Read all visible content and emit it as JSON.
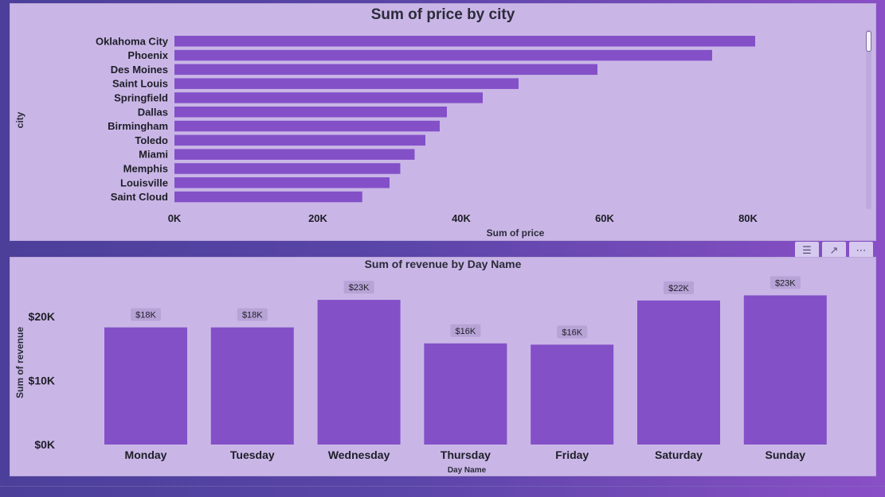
{
  "visual_actions": {
    "filter_icon": "filter-icon",
    "focus_icon": "focus-mode-icon",
    "more_icon": "more-options-icon"
  },
  "colors": {
    "bar": "#8350c8",
    "label_bg": "#b7a3d6",
    "text": "#1e1e28",
    "panel": "#c9b6e6"
  },
  "chart_data": [
    {
      "type": "bar",
      "orientation": "horizontal",
      "title": "Sum of price by city",
      "xlabel": "Sum of price",
      "ylabel": "city",
      "categories": [
        "Oklahoma City",
        "Phoenix",
        "Des Moines",
        "Saint Louis",
        "Springfield",
        "Dallas",
        "Birmingham",
        "Toledo",
        "Miami",
        "Memphis",
        "Louisville",
        "Saint Cloud"
      ],
      "values": [
        81000,
        75000,
        59000,
        48000,
        43000,
        38000,
        37000,
        35000,
        33500,
        31500,
        30000,
        26200
      ],
      "xlim": [
        0,
        90000
      ],
      "ticks": [
        "0K",
        "20K",
        "40K",
        "60K",
        "80K"
      ],
      "tick_values": [
        0,
        20000,
        40000,
        60000,
        80000
      ],
      "grid": false,
      "legend": "none"
    },
    {
      "type": "bar",
      "orientation": "vertical",
      "title": "Sum of revenue by Day Name",
      "xlabel": "Day Name",
      "ylabel": "Sum of revenue",
      "categories": [
        "Monday",
        "Tuesday",
        "Wednesday",
        "Thursday",
        "Friday",
        "Saturday",
        "Sunday"
      ],
      "values": [
        18300,
        18300,
        22600,
        15800,
        15600,
        22500,
        23300
      ],
      "data_labels": [
        "$18K",
        "$18K",
        "$23K",
        "$16K",
        "$16K",
        "$22K",
        "$23K"
      ],
      "ylim": [
        0,
        25000
      ],
      "ticks": [
        "$0K",
        "$10K",
        "$20K"
      ],
      "tick_values": [
        0,
        10000,
        20000
      ],
      "grid": false,
      "legend": "none"
    }
  ]
}
